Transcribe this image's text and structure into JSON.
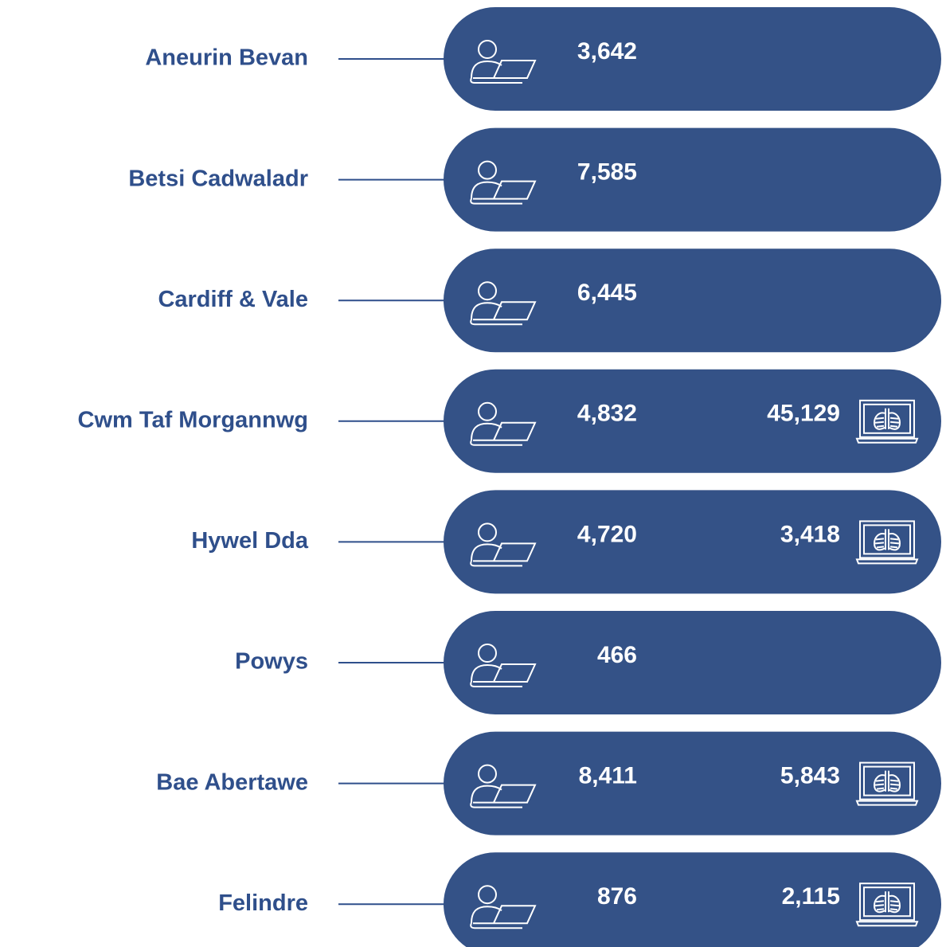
{
  "rows": [
    {
      "name": "Aneurin Bevan",
      "value": "3,642"
    },
    {
      "name": "Betsi Cadwaladr",
      "value": "7,585"
    },
    {
      "name": "Cardiff & Vale",
      "value": "6,445"
    },
    {
      "name": "Cwm Taf Morgannwg",
      "value": "4,832",
      "xray": "45,129"
    },
    {
      "name": "Hywel Dda",
      "value": "4,720",
      "xray": "3,418"
    },
    {
      "name": "Powys",
      "value": "466"
    },
    {
      "name": "Bae Abertawe",
      "value": "8,411",
      "xray": "5,843"
    },
    {
      "name": "Felindre",
      "value": "876",
      "xray": "2,115"
    }
  ]
}
